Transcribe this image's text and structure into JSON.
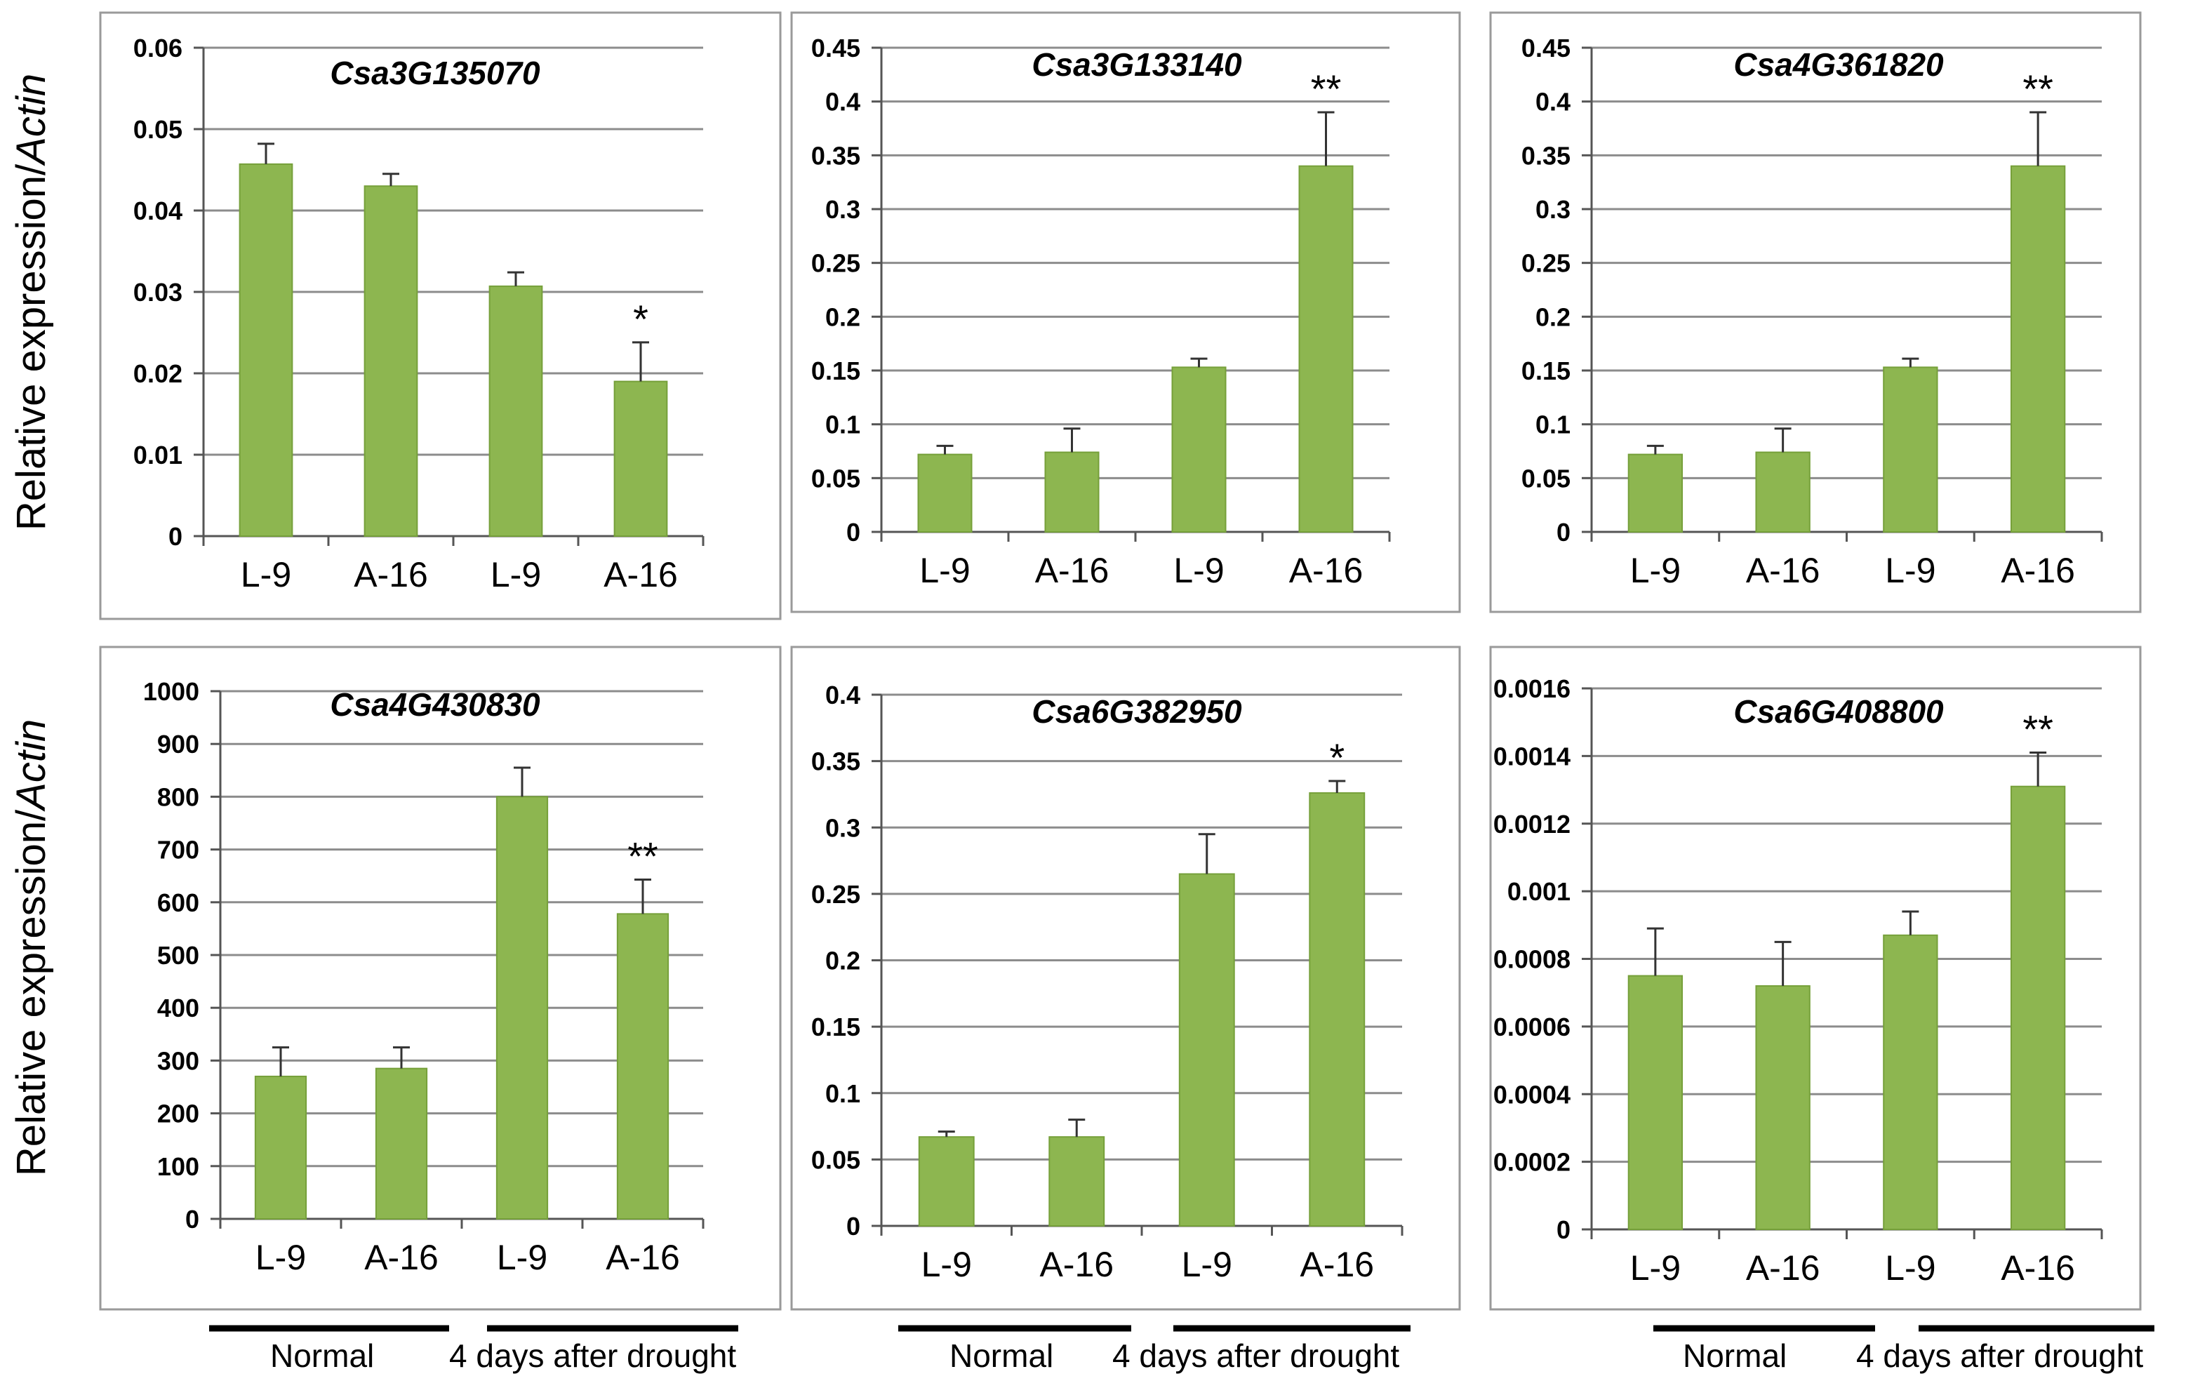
{
  "figure": {
    "ylabel_prefix": "Relative expression/",
    "ylabel_italic": "Actin",
    "group_normal": "Normal",
    "group_drought": "4 days after drought",
    "bar_color": "#8DB650",
    "bar_stroke": "#76A03A",
    "grid_color": "#8C8C8C",
    "frame_color": "#9A9A9A"
  },
  "chart_data": [
    {
      "type": "bar",
      "title": "Csa3G135070",
      "categories": [
        "L-9",
        "A-16",
        "L-9",
        "A-16"
      ],
      "values": [
        0.0457,
        0.043,
        0.0307,
        0.019
      ],
      "errors": [
        0.0025,
        0.0015,
        0.0017,
        0.0048
      ],
      "significance": [
        "",
        "",
        "",
        "*"
      ],
      "ylim": [
        0,
        0.06
      ],
      "yticks": [
        0,
        0.01,
        0.02,
        0.03,
        0.04,
        0.05,
        0.06
      ],
      "ytick_labels": [
        "0",
        "0.01",
        "0.02",
        "0.03",
        "0.04",
        "0.05",
        "0.06"
      ],
      "xlabel": "",
      "ylabel": "Relative expression/Actin"
    },
    {
      "type": "bar",
      "title": "Csa3G133140",
      "categories": [
        "L-9",
        "A-16",
        "L-9",
        "A-16"
      ],
      "values": [
        0.072,
        0.074,
        0.153,
        0.34
      ],
      "errors": [
        0.008,
        0.022,
        0.008,
        0.05
      ],
      "significance": [
        "",
        "",
        "",
        "**"
      ],
      "ylim": [
        0,
        0.45
      ],
      "yticks": [
        0,
        0.05,
        0.1,
        0.15,
        0.2,
        0.25,
        0.3,
        0.35,
        0.4,
        0.45
      ],
      "ytick_labels": [
        "0",
        "0.05",
        "0.1",
        "0.15",
        "0.2",
        "0.25",
        "0.3",
        "0.35",
        "0.4",
        "0.45"
      ],
      "xlabel": "",
      "ylabel": ""
    },
    {
      "type": "bar",
      "title": "Csa4G361820",
      "categories": [
        "L-9",
        "A-16",
        "L-9",
        "A-16"
      ],
      "values": [
        0.072,
        0.074,
        0.153,
        0.34
      ],
      "errors": [
        0.008,
        0.022,
        0.008,
        0.05
      ],
      "significance": [
        "",
        "",
        "",
        "**"
      ],
      "ylim": [
        0,
        0.45
      ],
      "yticks": [
        0,
        0.05,
        0.1,
        0.15,
        0.2,
        0.25,
        0.3,
        0.35,
        0.4,
        0.45
      ],
      "ytick_labels": [
        "0",
        "0.05",
        "0.1",
        "0.15",
        "0.2",
        "0.25",
        "0.3",
        "0.35",
        "0.4",
        "0.45"
      ],
      "xlabel": "",
      "ylabel": ""
    },
    {
      "type": "bar",
      "title": "Csa4G430830",
      "categories": [
        "L-9",
        "A-16",
        "L-9",
        "A-16"
      ],
      "values": [
        270,
        285,
        800,
        578
      ],
      "errors": [
        55,
        40,
        55,
        65
      ],
      "significance": [
        "",
        "",
        "",
        "**"
      ],
      "ylim": [
        0,
        1000
      ],
      "yticks": [
        0,
        100,
        200,
        300,
        400,
        500,
        600,
        700,
        800,
        900,
        1000
      ],
      "ytick_labels": [
        "0",
        "100",
        "200",
        "300",
        "400",
        "500",
        "600",
        "700",
        "800",
        "900",
        "1000"
      ],
      "xlabel": "",
      "ylabel": "Relative expression/Actin"
    },
    {
      "type": "bar",
      "title": "Csa6G382950",
      "categories": [
        "L-9",
        "A-16",
        "L-9",
        "A-16"
      ],
      "values": [
        0.067,
        0.067,
        0.265,
        0.326
      ],
      "errors": [
        0.004,
        0.013,
        0.03,
        0.009
      ],
      "significance": [
        "",
        "",
        "",
        "*"
      ],
      "ylim": [
        0,
        0.4
      ],
      "yticks": [
        0,
        0.05,
        0.1,
        0.15,
        0.2,
        0.25,
        0.3,
        0.35,
        0.4
      ],
      "ytick_labels": [
        "0",
        "0.05",
        "0.1",
        "0.15",
        "0.2",
        "0.25",
        "0.3",
        "0.35",
        "0.4"
      ],
      "xlabel": "",
      "ylabel": ""
    },
    {
      "type": "bar",
      "title": "Csa6G408800",
      "categories": [
        "L-9",
        "A-16",
        "L-9",
        "A-16"
      ],
      "values": [
        0.00075,
        0.00072,
        0.00087,
        0.00131
      ],
      "errors": [
        0.00014,
        0.00013,
        7e-05,
        0.0001
      ],
      "significance": [
        "",
        "",
        "",
        "**"
      ],
      "ylim": [
        0,
        0.0016
      ],
      "yticks": [
        0,
        0.0002,
        0.0004,
        0.0006,
        0.0008,
        0.001,
        0.0012,
        0.0014,
        0.0016
      ],
      "ytick_labels": [
        "0",
        "0.0002",
        "0.0004",
        "0.0006",
        "0.0008",
        "0.001",
        "0.0012",
        "0.0014",
        "0.0016"
      ],
      "xlabel": "",
      "ylabel": ""
    }
  ]
}
